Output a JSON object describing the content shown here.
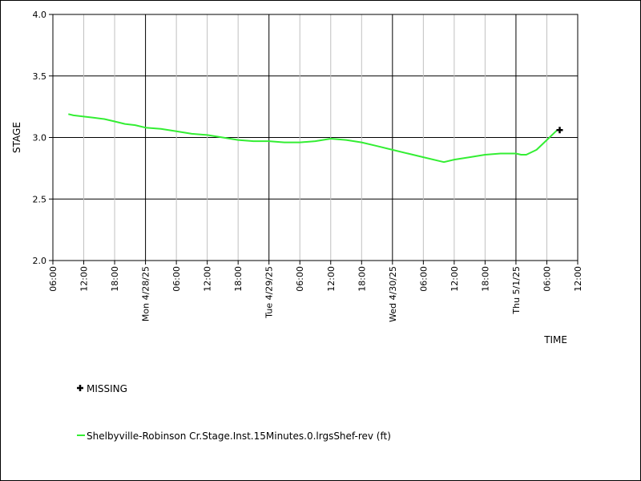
{
  "chart_data": {
    "type": "line",
    "xlabel": "TIME",
    "ylabel": "STAGE",
    "xlim": [
      "2025-04-27 06:00",
      "2025-05-01 12:00"
    ],
    "ylim": [
      2.0,
      4.0
    ],
    "y_ticks": [
      "2.0",
      "2.5",
      "3.0",
      "3.5",
      "4.0"
    ],
    "x_ticks": [
      {
        "t": "2025-04-27 06:00",
        "label": "06:00",
        "major": false
      },
      {
        "t": "2025-04-27 12:00",
        "label": "12:00",
        "major": false
      },
      {
        "t": "2025-04-27 18:00",
        "label": "18:00",
        "major": false
      },
      {
        "t": "2025-04-28 00:00",
        "label": "Mon 4/28/25",
        "major": true
      },
      {
        "t": "2025-04-28 06:00",
        "label": "06:00",
        "major": false
      },
      {
        "t": "2025-04-28 12:00",
        "label": "12:00",
        "major": false
      },
      {
        "t": "2025-04-28 18:00",
        "label": "18:00",
        "major": false
      },
      {
        "t": "2025-04-29 00:00",
        "label": "Tue 4/29/25",
        "major": true
      },
      {
        "t": "2025-04-29 06:00",
        "label": "06:00",
        "major": false
      },
      {
        "t": "2025-04-29 12:00",
        "label": "12:00",
        "major": false
      },
      {
        "t": "2025-04-29 18:00",
        "label": "18:00",
        "major": false
      },
      {
        "t": "2025-04-30 00:00",
        "label": "Wed 4/30/25",
        "major": true
      },
      {
        "t": "2025-04-30 06:00",
        "label": "06:00",
        "major": false
      },
      {
        "t": "2025-04-30 12:00",
        "label": "12:00",
        "major": false
      },
      {
        "t": "2025-04-30 18:00",
        "label": "18:00",
        "major": false
      },
      {
        "t": "2025-05-01 00:00",
        "label": "Thu 5/1/25",
        "major": true
      },
      {
        "t": "2025-05-01 06:00",
        "label": "06:00",
        "major": false
      },
      {
        "t": "2025-05-01 12:00",
        "label": "12:00",
        "major": false
      }
    ],
    "grid": true,
    "series": [
      {
        "name": "Shelbyville-Robinson Cr.Stage.Inst.15Minutes.0.lrgsShef-rev (ft)",
        "color": "#33ee33",
        "x": [
          "2025-04-27 09:00",
          "2025-04-27 10:00",
          "2025-04-27 12:00",
          "2025-04-27 14:00",
          "2025-04-27 16:00",
          "2025-04-27 18:00",
          "2025-04-27 20:00",
          "2025-04-27 22:00",
          "2025-04-28 00:00",
          "2025-04-28 03:00",
          "2025-04-28 06:00",
          "2025-04-28 09:00",
          "2025-04-28 12:00",
          "2025-04-28 15:00",
          "2025-04-28 18:00",
          "2025-04-28 21:00",
          "2025-04-29 00:00",
          "2025-04-29 03:00",
          "2025-04-29 06:00",
          "2025-04-29 09:00",
          "2025-04-29 12:00",
          "2025-04-29 15:00",
          "2025-04-29 18:00",
          "2025-04-29 21:00",
          "2025-04-30 00:00",
          "2025-04-30 03:00",
          "2025-04-30 06:00",
          "2025-04-30 09:00",
          "2025-04-30 10:00",
          "2025-04-30 12:00",
          "2025-04-30 15:00",
          "2025-04-30 18:00",
          "2025-04-30 21:00",
          "2025-05-01 00:00",
          "2025-05-01 01:00",
          "2025-05-01 02:00",
          "2025-05-01 04:00",
          "2025-05-01 06:00",
          "2025-05-01 08:00"
        ],
        "values": [
          3.19,
          3.18,
          3.17,
          3.16,
          3.15,
          3.13,
          3.11,
          3.1,
          3.08,
          3.07,
          3.05,
          3.03,
          3.02,
          3.0,
          2.98,
          2.97,
          2.97,
          2.96,
          2.96,
          2.97,
          2.99,
          2.98,
          2.96,
          2.93,
          2.9,
          2.87,
          2.84,
          2.81,
          2.8,
          2.82,
          2.84,
          2.86,
          2.87,
          2.87,
          2.86,
          2.86,
          2.9,
          2.98,
          3.06
        ]
      }
    ],
    "missing": {
      "name": "MISSING",
      "points": [
        {
          "x": "2025-05-01 08:30",
          "y": 3.06
        }
      ]
    }
  }
}
